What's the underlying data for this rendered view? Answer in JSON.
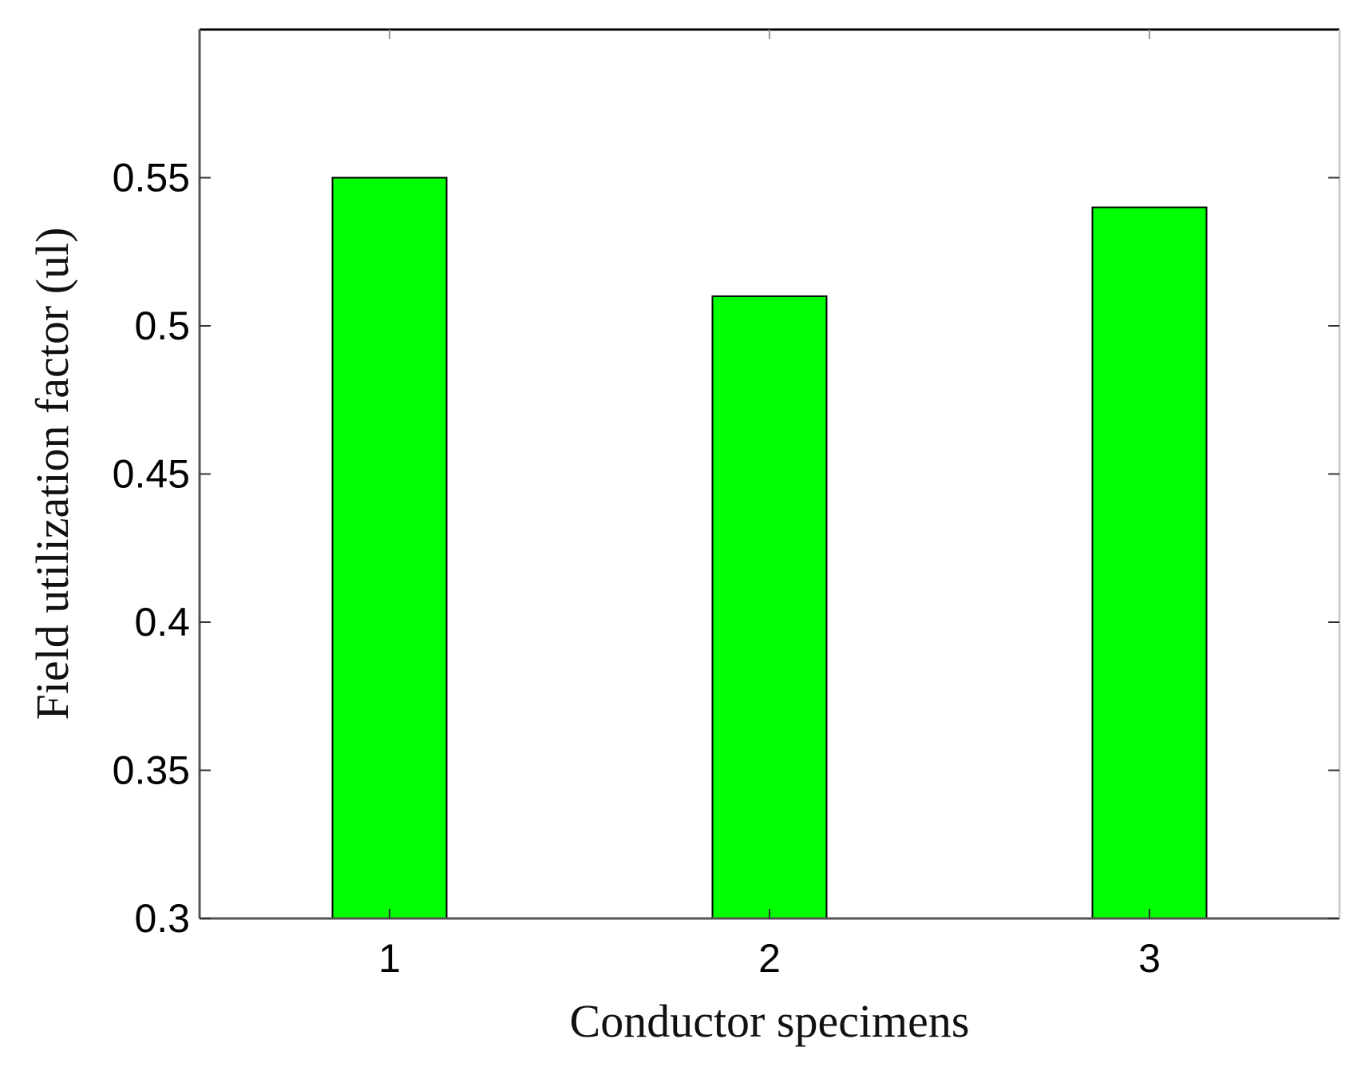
{
  "chart_data": {
    "type": "bar",
    "title": "",
    "xlabel": "Conductor specimens",
    "ylabel": "Field utilization factor (ul)",
    "categories": [
      "1",
      "2",
      "3"
    ],
    "series": [
      {
        "values": [
          0.55,
          0.51,
          0.54
        ]
      }
    ],
    "ylim": [
      0.3,
      0.6
    ],
    "yticks": [
      0.3,
      0.35,
      0.4,
      0.45,
      0.5,
      0.55
    ],
    "ytick_labels": [
      "0.3",
      "0.35",
      "0.4",
      "0.45",
      "0.5",
      "0.55"
    ],
    "grid": false,
    "legend": "none",
    "colors": {
      "bar_fill": "#00ff00",
      "bar_edge": "#000000",
      "axis": "#555555"
    }
  }
}
